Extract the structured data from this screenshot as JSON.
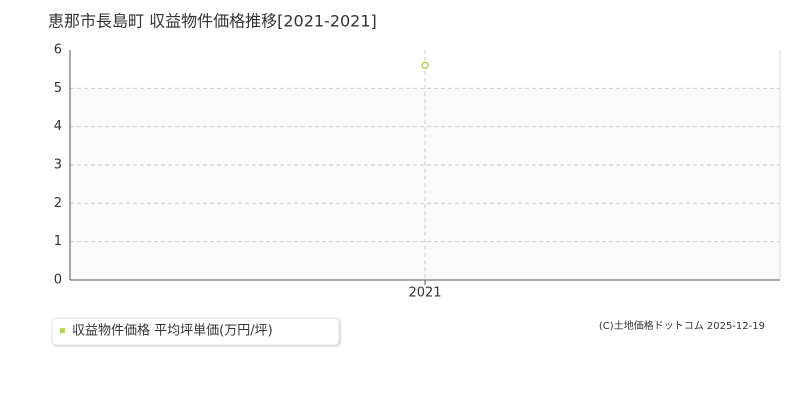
{
  "chart_data": {
    "type": "line",
    "title": "恵那市長島町 収益物件価格推移[2021-2021]",
    "categories": [
      "2021"
    ],
    "series": [
      {
        "name": "収益物件価格 平均坪単価(万円/坪)",
        "color": "#b5d65a",
        "values": [
          5.6
        ]
      }
    ],
    "ylim": [
      0,
      6
    ],
    "yticks": [
      0,
      1,
      2,
      3,
      4,
      5,
      6
    ],
    "grid": true,
    "credit": "(C)土地価格ドットコム 2025-12-19"
  }
}
